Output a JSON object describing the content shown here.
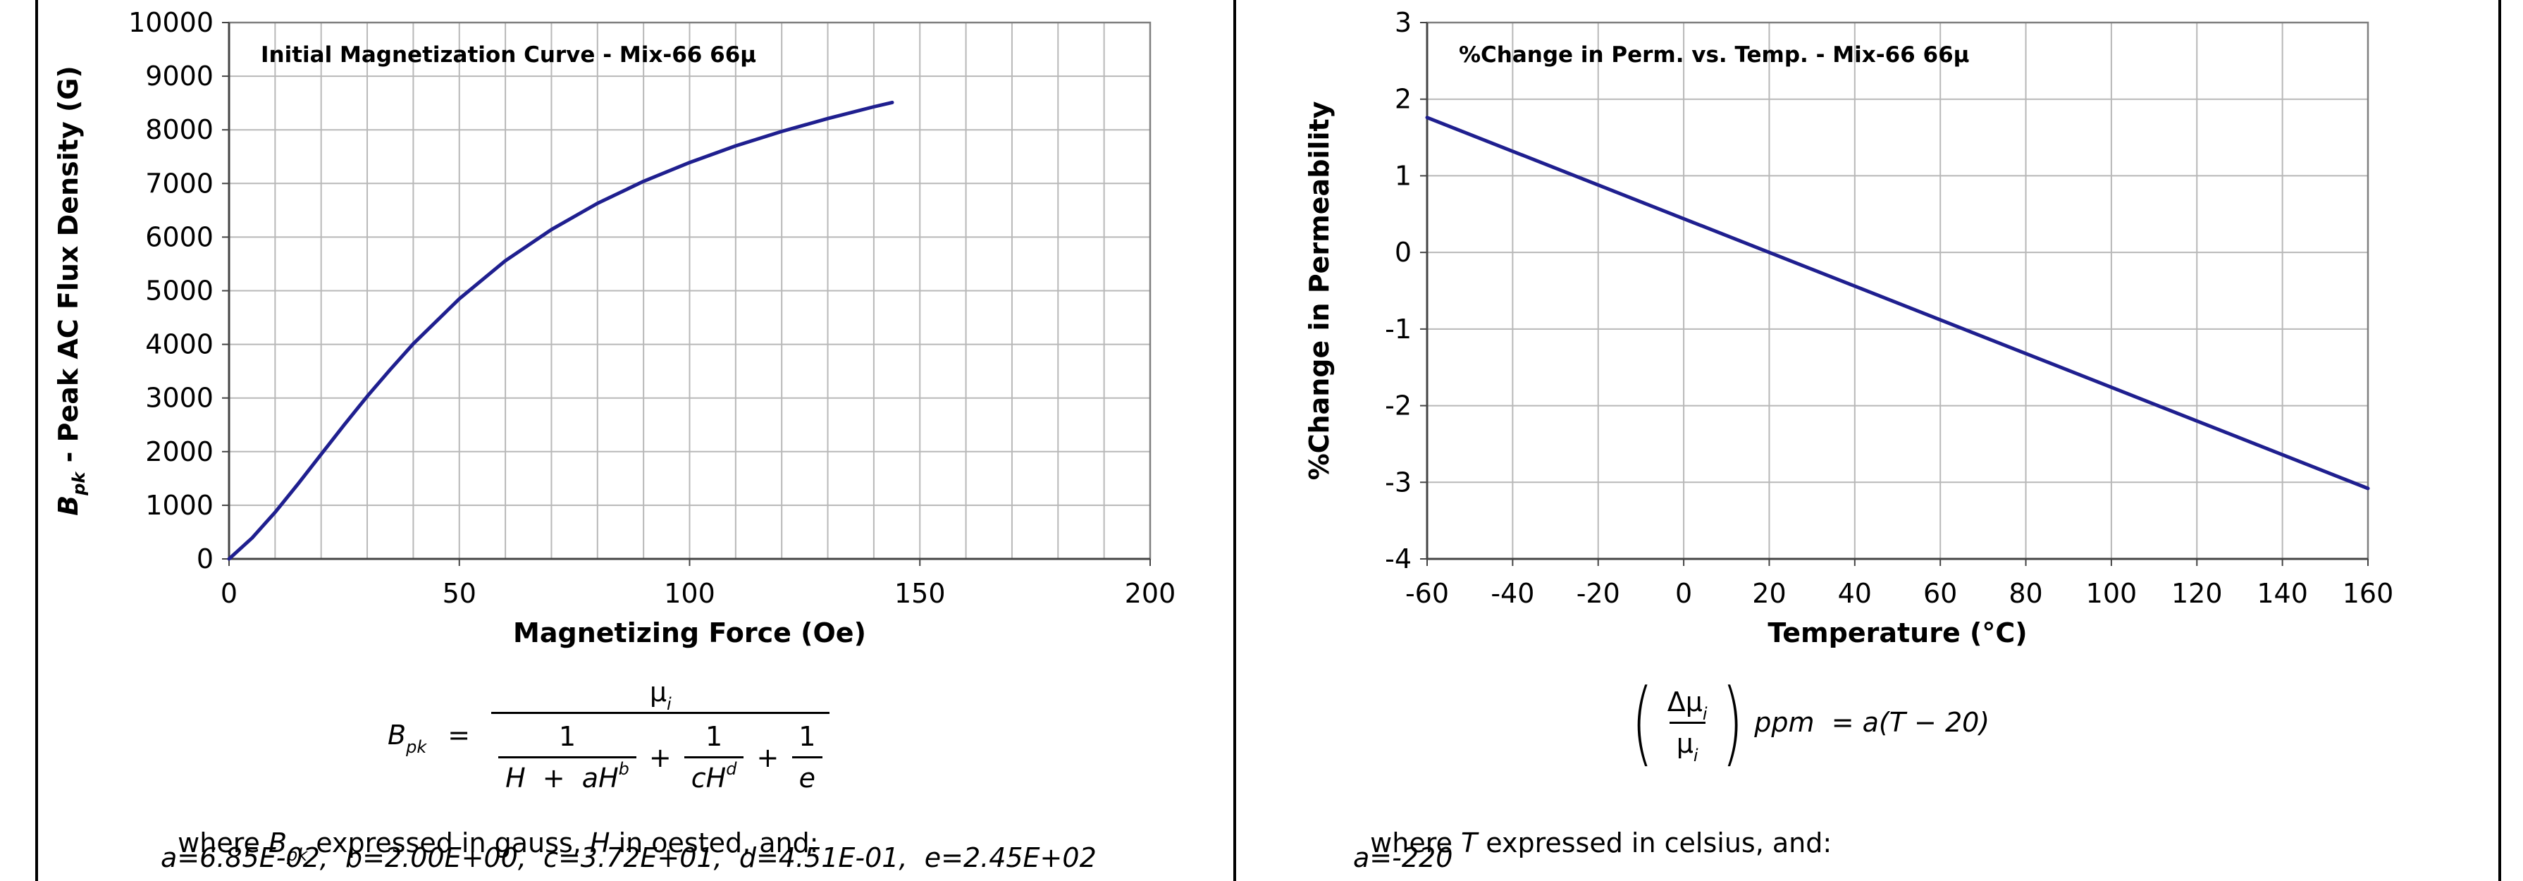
{
  "chart_data": [
    {
      "type": "line",
      "title": "Initial Magnetization Curve - Mix-66  66µ",
      "xlabel": "Magnetizing Force (Oe)",
      "ylabel": "B_pk - Peak AC Flux Density (G)",
      "xlim": [
        0,
        200
      ],
      "ylim": [
        0,
        10000
      ],
      "x_ticks": [
        "0",
        "50",
        "100",
        "150",
        "200"
      ],
      "y_ticks": [
        "0",
        "1000",
        "2000",
        "3000",
        "4000",
        "5000",
        "6000",
        "7000",
        "8000",
        "9000",
        "10000"
      ],
      "grid": true,
      "line_color": "#1f1f8f",
      "series": [
        {
          "x": [
            0,
            5,
            10,
            15,
            20,
            25,
            30,
            35,
            40,
            50,
            60,
            70,
            80,
            90,
            100,
            110,
            120,
            130,
            140,
            144
          ],
          "values": [
            0,
            390,
            870,
            1400,
            1950,
            2500,
            3030,
            3530,
            4010,
            4850,
            5560,
            6140,
            6630,
            7040,
            7390,
            7700,
            7970,
            8210,
            8430,
            8510
          ]
        }
      ]
    },
    {
      "type": "line",
      "title": "%Change in Perm. vs. Temp. - Mix-66  66µ",
      "xlabel": "Temperature (°C)",
      "ylabel": "%Change in Permeability",
      "xlim": [
        -60,
        160
      ],
      "ylim": [
        -4,
        3
      ],
      "x_ticks": [
        "-60",
        "-40",
        "-20",
        "0",
        "20",
        "40",
        "60",
        "80",
        "100",
        "120",
        "140",
        "160"
      ],
      "y_ticks": [
        "-4",
        "-3",
        "-2",
        "-1",
        "0",
        "1",
        "2",
        "3"
      ],
      "grid": true,
      "line_color": "#1f1f8f",
      "series": [
        {
          "x": [
            -60,
            160
          ],
          "values": [
            1.76,
            -3.08
          ]
        }
      ]
    }
  ],
  "left_equation": {
    "lhs": "B",
    "lhs_sub": "pk",
    "equals": "=",
    "numerator": "µ",
    "numerator_sub": "i",
    "term1_num": "1",
    "term1_den_a": "H  +  aH",
    "term1_den_sup": "b",
    "plus1": "+",
    "term2_num": "1",
    "term2_den": "cH",
    "term2_den_sup": "d",
    "plus2": "+",
    "term3_num": "1",
    "term3_den": "e",
    "where_a": "where ",
    "where_b": "B",
    "where_b_sub": "pk",
    "where_c": " expressed in gauss, ",
    "where_d": "H",
    "where_e": " in oested, and:",
    "coefficients": "a=6.85E-02,  b=2.00E+00,  c=3.72E+01,  d=4.51E-01,  e=2.45E+02"
  },
  "right_equation": {
    "frac_num": "Δµ",
    "frac_num_sub": "i",
    "frac_den": "µ",
    "frac_den_sub": "i",
    "rhs": "ppm  = a(T − 20)",
    "where_a": "where ",
    "where_b": "T",
    "where_c": " expressed in celsius, and:",
    "coefficients": "a=-220"
  }
}
